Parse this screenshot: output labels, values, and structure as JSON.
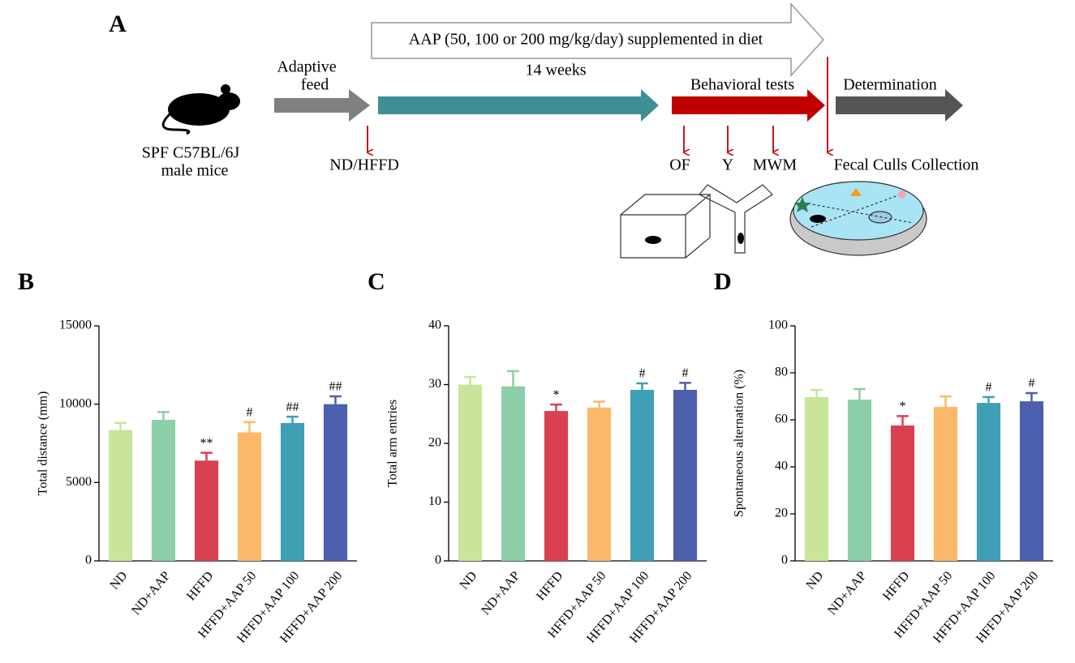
{
  "diagram": {
    "panel": "A",
    "banner": "AAP (50, 100 or 200 mg/kg/day) supplemented in diet",
    "duration": "14 weeks",
    "adapt_1": "Adaptive",
    "adapt_2": "feed",
    "mice_1": "SPF  C57BL/6J",
    "mice_2": "male mice",
    "diet": "ND/HFFD",
    "behavior": "Behavioral tests",
    "determination": "Determination",
    "tests": [
      "OF",
      "Y",
      "MWM"
    ],
    "collection": "Fecal Culls Collection"
  },
  "chart_data": [
    {
      "type": "bar",
      "label": "B",
      "y_label": "Total distance (mm)",
      "categories": [
        "ND",
        "ND+AAP",
        "HFFD",
        "HFFD+AAP 50",
        "HFFD+AAP 100",
        "HFFD+AAP 200"
      ],
      "values": [
        8350,
        9000,
        6400,
        8200,
        8800,
        10000
      ],
      "errors": [
        450,
        500,
        500,
        650,
        400,
        500
      ],
      "colors": [
        "#c8e59a",
        "#8ccea8",
        "#d94150",
        "#fbb86b",
        "#3f9fb5",
        "#4c5fad"
      ],
      "annotations": [
        {
          "category": "HFFD",
          "text": "**"
        },
        {
          "category": "HFFD+AAP 50",
          "text": "#"
        },
        {
          "category": "HFFD+AAP 100",
          "text": "##"
        },
        {
          "category": "HFFD+AAP 200",
          "text": "##"
        }
      ],
      "ylim": [
        0,
        15000
      ],
      "yticks": [
        0,
        5000,
        10000,
        15000
      ]
    },
    {
      "type": "bar",
      "label": "C",
      "y_label": "Total arm entries",
      "categories": [
        "ND",
        "ND+AAP",
        "HFFD",
        "HFFD+AAP 50",
        "HFFD+AAP 100",
        "HFFD+AAP 200"
      ],
      "values": [
        30,
        29.7,
        25.5,
        26.1,
        29.1,
        29.1
      ],
      "errors": [
        1.3,
        2.6,
        1.1,
        1,
        1.1,
        1.2
      ],
      "colors": [
        "#c8e59a",
        "#8ccea8",
        "#d94150",
        "#fbb86b",
        "#3f9fb5",
        "#4c5fad"
      ],
      "annotations": [
        {
          "category": "HFFD",
          "text": "*"
        },
        {
          "category": "HFFD+AAP 100",
          "text": "#"
        },
        {
          "category": "HFFD+AAP 200",
          "text": "#"
        }
      ],
      "ylim": [
        0,
        40
      ],
      "yticks": [
        0,
        10,
        20,
        30,
        40
      ]
    },
    {
      "type": "bar",
      "label": "D",
      "y_label": "Spontaneous alternation (%)",
      "categories": [
        "ND",
        "ND+AAP",
        "HFFD",
        "HFFD+AAP 50",
        "HFFD+AAP 100",
        "HFFD+AAP 200"
      ],
      "values": [
        69.7,
        68.6,
        57.6,
        65.5,
        67.2,
        67.9
      ],
      "errors": [
        3,
        4.5,
        4,
        4.5,
        2.5,
        3.5
      ],
      "colors": [
        "#c8e59a",
        "#8ccea8",
        "#d94150",
        "#fbb86b",
        "#3f9fb5",
        "#4c5fad"
      ],
      "annotations": [
        {
          "category": "HFFD",
          "text": "*"
        },
        {
          "category": "HFFD+AAP 100",
          "text": "#"
        },
        {
          "category": "HFFD+AAP 200",
          "text": "#"
        }
      ],
      "ylim": [
        0,
        100
      ],
      "yticks": [
        0,
        20,
        40,
        60,
        80,
        100
      ]
    }
  ]
}
